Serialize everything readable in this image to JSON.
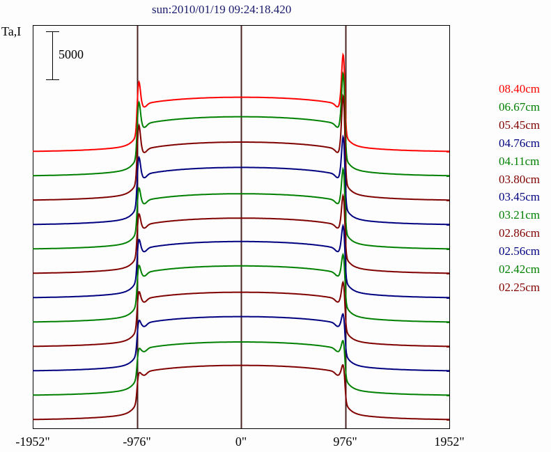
{
  "chart_data": {
    "type": "line",
    "title": "sun:2010/01/19 09:24:18.420",
    "ylabel": "Ta,I",
    "scale_bar": {
      "label": "5000",
      "value": 5000
    },
    "xlabel": "",
    "x_ticks": [
      "-1952\"",
      "-976\"",
      "0\"",
      "976\"",
      "1952\""
    ],
    "x_tick_values": [
      -1952,
      -976,
      0,
      976,
      1952
    ],
    "xlim": [
      -1952,
      1952
    ],
    "vertical_markers": [
      -976,
      0,
      976
    ],
    "offset_step": 2500,
    "legend_position": "right",
    "series": [
      {
        "name": "08.40cm",
        "color": "#ff0000",
        "disk_center": 5600,
        "left_limb_peak": 7900,
        "right_limb_peak": 11600
      },
      {
        "name": "06.67cm",
        "color": "#008000",
        "disk_center": 6100,
        "left_limb_peak": 8300,
        "right_limb_peak": 12200
      },
      {
        "name": "05.45cm",
        "color": "#800000",
        "disk_center": 6000,
        "left_limb_peak": 8500,
        "right_limb_peak": 12500
      },
      {
        "name": "04.76cm",
        "color": "#000080",
        "disk_center": 5900,
        "left_limb_peak": 7500,
        "right_limb_peak": 10300
      },
      {
        "name": "04.11cm",
        "color": "#008000",
        "disk_center": 5700,
        "left_limb_peak": 6700,
        "right_limb_peak": 9300
      },
      {
        "name": "03.80cm",
        "color": "#800000",
        "disk_center": 5700,
        "left_limb_peak": 6500,
        "right_limb_peak": 9000
      },
      {
        "name": "03.45cm",
        "color": "#000080",
        "disk_center": 5800,
        "left_limb_peak": 6300,
        "right_limb_peak": 8200
      },
      {
        "name": "03.21cm",
        "color": "#008000",
        "disk_center": 5800,
        "left_limb_peak": 6100,
        "right_limb_peak": 7600
      },
      {
        "name": "02.86cm",
        "color": "#800000",
        "disk_center": 5600,
        "left_limb_peak": 5900,
        "right_limb_peak": 7200
      },
      {
        "name": "02.56cm",
        "color": "#000080",
        "disk_center": 5600,
        "left_limb_peak": 5300,
        "right_limb_peak": 6200
      },
      {
        "name": "02.42cm",
        "color": "#008000",
        "disk_center": 5500,
        "left_limb_peak": 4800,
        "right_limb_peak": 5900
      },
      {
        "name": "02.25cm",
        "color": "#800000",
        "disk_center": 5600,
        "left_limb_peak": 4800,
        "right_limb_peak": 5900
      }
    ]
  }
}
